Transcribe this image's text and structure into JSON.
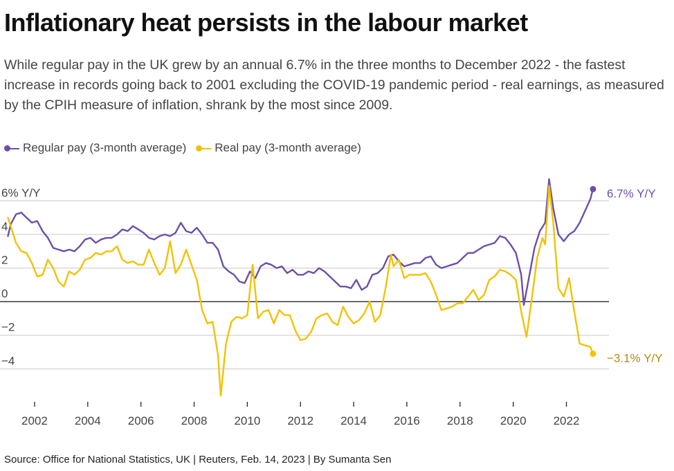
{
  "title": "Inflationary heat persists in the labour market",
  "subtitle": "While regular pay in the UK grew by an annual 6.7% in the three months to December 2022 - the fastest increase in records going back to 2001 excluding the COVID-19 pandemic period - real earnings, as measured by the CPIH measure of inflation, shrank by the most since 2009.",
  "source": "Source: Office for National Statistics, UK | Reuters, Feb. 14, 2023 | By Sumanta Sen",
  "colors": {
    "regular": "#6b4fa8",
    "real": "#f2c200",
    "real_label": "#b08a10",
    "grid": "#c8c8c8",
    "zero": "#111111"
  },
  "chart_data": {
    "type": "line",
    "title": "Inflationary heat persists in the labour market",
    "xlabel": "",
    "ylabel": "",
    "xlim": [
      2000.7,
      2023.6
    ],
    "ylim": [
      -5.8,
      7.5
    ],
    "grid": true,
    "legend_position": "top-left",
    "y_ticks": [
      {
        "value": 6,
        "label": "6% Y/Y"
      },
      {
        "value": 4,
        "label": "4"
      },
      {
        "value": 2,
        "label": "2"
      },
      {
        "value": 0,
        "label": "0"
      },
      {
        "value": -2,
        "label": "−2"
      },
      {
        "value": -4,
        "label": "−4"
      }
    ],
    "x_ticks": [
      2002,
      2004,
      2006,
      2008,
      2010,
      2012,
      2014,
      2016,
      2018,
      2020,
      2022
    ],
    "series": [
      {
        "name": "Regular pay (3-month average)",
        "end_label": "6.7% Y/Y",
        "points": [
          [
            2001.0,
            3.9
          ],
          [
            2001.1,
            4.6
          ],
          [
            2001.3,
            5.2
          ],
          [
            2001.5,
            5.3
          ],
          [
            2001.7,
            5.0
          ],
          [
            2001.9,
            4.7
          ],
          [
            2002.1,
            4.8
          ],
          [
            2002.3,
            4.2
          ],
          [
            2002.5,
            3.8
          ],
          [
            2002.7,
            3.2
          ],
          [
            2002.9,
            3.1
          ],
          [
            2003.1,
            3.0
          ],
          [
            2003.3,
            3.1
          ],
          [
            2003.5,
            3.0
          ],
          [
            2003.7,
            3.3
          ],
          [
            2003.9,
            3.7
          ],
          [
            2004.1,
            3.8
          ],
          [
            2004.3,
            3.5
          ],
          [
            2004.5,
            3.7
          ],
          [
            2004.7,
            3.8
          ],
          [
            2004.9,
            3.8
          ],
          [
            2005.1,
            4.0
          ],
          [
            2005.3,
            4.3
          ],
          [
            2005.5,
            4.2
          ],
          [
            2005.7,
            4.5
          ],
          [
            2005.9,
            4.3
          ],
          [
            2006.1,
            4.1
          ],
          [
            2006.3,
            3.8
          ],
          [
            2006.5,
            3.7
          ],
          [
            2006.7,
            3.9
          ],
          [
            2006.9,
            4.0
          ],
          [
            2007.1,
            3.9
          ],
          [
            2007.3,
            4.1
          ],
          [
            2007.5,
            4.7
          ],
          [
            2007.7,
            4.2
          ],
          [
            2007.9,
            4.1
          ],
          [
            2008.1,
            4.4
          ],
          [
            2008.3,
            4.0
          ],
          [
            2008.5,
            3.5
          ],
          [
            2008.7,
            3.5
          ],
          [
            2008.9,
            3.1
          ],
          [
            2009.1,
            2.1
          ],
          [
            2009.3,
            1.8
          ],
          [
            2009.5,
            1.6
          ],
          [
            2009.7,
            1.2
          ],
          [
            2009.9,
            1.1
          ],
          [
            2010.1,
            1.8
          ],
          [
            2010.3,
            1.4
          ],
          [
            2010.5,
            2.1
          ],
          [
            2010.7,
            2.3
          ],
          [
            2010.9,
            2.2
          ],
          [
            2011.1,
            2.0
          ],
          [
            2011.3,
            2.1
          ],
          [
            2011.5,
            1.7
          ],
          [
            2011.7,
            1.9
          ],
          [
            2011.9,
            1.6
          ],
          [
            2012.1,
            1.6
          ],
          [
            2012.3,
            1.8
          ],
          [
            2012.5,
            1.7
          ],
          [
            2012.7,
            2.0
          ],
          [
            2012.9,
            1.8
          ],
          [
            2013.1,
            1.5
          ],
          [
            2013.3,
            1.2
          ],
          [
            2013.5,
            0.9
          ],
          [
            2013.7,
            0.9
          ],
          [
            2013.9,
            0.8
          ],
          [
            2014.1,
            1.3
          ],
          [
            2014.3,
            0.7
          ],
          [
            2014.5,
            0.9
          ],
          [
            2014.7,
            1.6
          ],
          [
            2014.9,
            1.7
          ],
          [
            2015.1,
            2.0
          ],
          [
            2015.3,
            2.7
          ],
          [
            2015.5,
            2.8
          ],
          [
            2015.7,
            2.4
          ],
          [
            2015.9,
            2.1
          ],
          [
            2016.1,
            2.2
          ],
          [
            2016.3,
            2.3
          ],
          [
            2016.5,
            2.3
          ],
          [
            2016.7,
            2.6
          ],
          [
            2016.9,
            2.7
          ],
          [
            2017.1,
            2.2
          ],
          [
            2017.3,
            2.0
          ],
          [
            2017.5,
            2.1
          ],
          [
            2017.7,
            2.2
          ],
          [
            2017.9,
            2.3
          ],
          [
            2018.1,
            2.6
          ],
          [
            2018.3,
            2.9
          ],
          [
            2018.5,
            2.9
          ],
          [
            2018.7,
            3.1
          ],
          [
            2018.9,
            3.3
          ],
          [
            2019.1,
            3.4
          ],
          [
            2019.3,
            3.5
          ],
          [
            2019.5,
            3.9
          ],
          [
            2019.7,
            3.8
          ],
          [
            2019.9,
            3.4
          ],
          [
            2020.1,
            2.9
          ],
          [
            2020.3,
            1.6
          ],
          [
            2020.4,
            -0.2
          ],
          [
            2020.6,
            1.5
          ],
          [
            2020.8,
            3.2
          ],
          [
            2021.0,
            4.2
          ],
          [
            2021.2,
            4.7
          ],
          [
            2021.35,
            7.3
          ],
          [
            2021.5,
            5.6
          ],
          [
            2021.7,
            4.0
          ],
          [
            2021.9,
            3.6
          ],
          [
            2022.1,
            4.0
          ],
          [
            2022.3,
            4.2
          ],
          [
            2022.5,
            4.7
          ],
          [
            2022.7,
            5.4
          ],
          [
            2022.9,
            6.1
          ],
          [
            2023.0,
            6.7
          ]
        ]
      },
      {
        "name": "Real pay (3-month average)",
        "end_label": "−3.1% Y/Y",
        "points": [
          [
            2001.0,
            5.0
          ],
          [
            2001.1,
            4.5
          ],
          [
            2001.3,
            3.5
          ],
          [
            2001.5,
            3.0
          ],
          [
            2001.7,
            2.9
          ],
          [
            2001.9,
            2.3
          ],
          [
            2002.1,
            1.5
          ],
          [
            2002.3,
            1.6
          ],
          [
            2002.5,
            2.5
          ],
          [
            2002.7,
            2.0
          ],
          [
            2002.9,
            1.2
          ],
          [
            2003.1,
            0.9
          ],
          [
            2003.3,
            1.8
          ],
          [
            2003.5,
            1.6
          ],
          [
            2003.7,
            1.9
          ],
          [
            2003.9,
            2.5
          ],
          [
            2004.1,
            2.6
          ],
          [
            2004.3,
            2.9
          ],
          [
            2004.5,
            2.8
          ],
          [
            2004.7,
            3.0
          ],
          [
            2004.9,
            3.0
          ],
          [
            2005.1,
            3.3
          ],
          [
            2005.3,
            2.5
          ],
          [
            2005.5,
            2.3
          ],
          [
            2005.7,
            2.4
          ],
          [
            2005.9,
            2.2
          ],
          [
            2006.1,
            2.2
          ],
          [
            2006.3,
            3.1
          ],
          [
            2006.5,
            2.3
          ],
          [
            2006.7,
            1.6
          ],
          [
            2006.9,
            2.0
          ],
          [
            2007.1,
            3.6
          ],
          [
            2007.3,
            1.7
          ],
          [
            2007.5,
            2.2
          ],
          [
            2007.7,
            3.1
          ],
          [
            2007.9,
            2.2
          ],
          [
            2008.1,
            1.3
          ],
          [
            2008.3,
            -0.5
          ],
          [
            2008.5,
            -1.3
          ],
          [
            2008.7,
            -1.2
          ],
          [
            2008.9,
            -3.2
          ],
          [
            2009.0,
            -5.6
          ],
          [
            2009.2,
            -2.5
          ],
          [
            2009.4,
            -1.2
          ],
          [
            2009.6,
            -0.9
          ],
          [
            2009.8,
            -1.0
          ],
          [
            2010.0,
            -0.8
          ],
          [
            2010.2,
            2.2
          ],
          [
            2010.4,
            -1.0
          ],
          [
            2010.6,
            -0.6
          ],
          [
            2010.8,
            -0.5
          ],
          [
            2011.0,
            -1.3
          ],
          [
            2011.2,
            -0.5
          ],
          [
            2011.4,
            -0.8
          ],
          [
            2011.6,
            -0.8
          ],
          [
            2011.8,
            -1.7
          ],
          [
            2012.0,
            -2.3
          ],
          [
            2012.2,
            -2.2
          ],
          [
            2012.4,
            -1.8
          ],
          [
            2012.6,
            -1.0
          ],
          [
            2012.8,
            -0.8
          ],
          [
            2013.0,
            -0.7
          ],
          [
            2013.2,
            -1.2
          ],
          [
            2013.4,
            -1.4
          ],
          [
            2013.6,
            -0.3
          ],
          [
            2013.8,
            -0.9
          ],
          [
            2014.0,
            -1.3
          ],
          [
            2014.2,
            -1.1
          ],
          [
            2014.4,
            -0.7
          ],
          [
            2014.6,
            0.0
          ],
          [
            2014.8,
            -1.2
          ],
          [
            2015.0,
            -0.8
          ],
          [
            2015.2,
            0.8
          ],
          [
            2015.4,
            2.8
          ],
          [
            2015.5,
            2.1
          ],
          [
            2015.7,
            2.5
          ],
          [
            2015.9,
            1.4
          ],
          [
            2016.1,
            1.6
          ],
          [
            2016.3,
            1.6
          ],
          [
            2016.5,
            1.6
          ],
          [
            2016.7,
            1.7
          ],
          [
            2016.9,
            1.2
          ],
          [
            2017.1,
            0.4
          ],
          [
            2017.3,
            -0.5
          ],
          [
            2017.5,
            -0.4
          ],
          [
            2017.7,
            -0.3
          ],
          [
            2017.9,
            -0.1
          ],
          [
            2018.1,
            -0.1
          ],
          [
            2018.3,
            0.3
          ],
          [
            2018.5,
            0.7
          ],
          [
            2018.7,
            0.1
          ],
          [
            2018.9,
            0.4
          ],
          [
            2019.1,
            1.3
          ],
          [
            2019.3,
            1.5
          ],
          [
            2019.5,
            1.9
          ],
          [
            2019.7,
            1.8
          ],
          [
            2019.9,
            1.6
          ],
          [
            2020.1,
            1.3
          ],
          [
            2020.3,
            -0.6
          ],
          [
            2020.5,
            -2.1
          ],
          [
            2020.7,
            0.2
          ],
          [
            2020.9,
            2.6
          ],
          [
            2021.1,
            3.8
          ],
          [
            2021.2,
            3.4
          ],
          [
            2021.35,
            6.9
          ],
          [
            2021.5,
            4.8
          ],
          [
            2021.7,
            0.8
          ],
          [
            2021.9,
            0.3
          ],
          [
            2022.1,
            1.4
          ],
          [
            2022.3,
            -0.6
          ],
          [
            2022.5,
            -2.5
          ],
          [
            2022.7,
            -2.6
          ],
          [
            2022.9,
            -2.7
          ],
          [
            2023.0,
            -3.1
          ]
        ]
      }
    ]
  }
}
